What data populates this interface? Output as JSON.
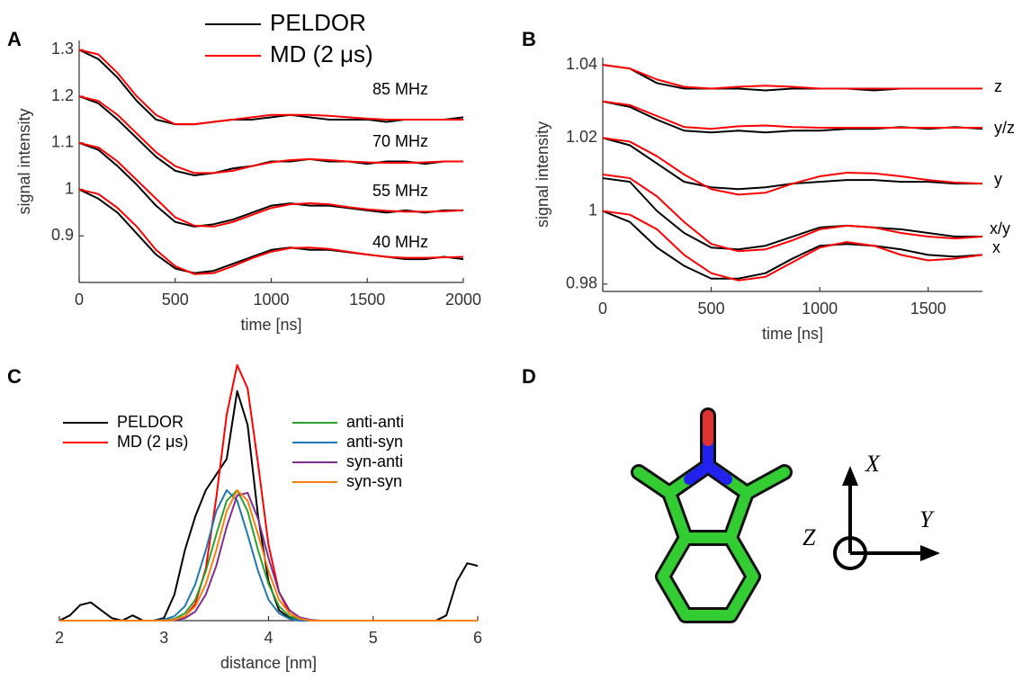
{
  "chart_data": [
    {
      "type": "line",
      "panel_label": "A",
      "xlabel": "time [ns]",
      "ylabel": "signal intensity",
      "xlim": [
        0,
        2000
      ],
      "ylim": [
        0.8,
        1.32
      ],
      "xticks": [
        0,
        500,
        1000,
        1500,
        2000
      ],
      "yticks": [
        0.9,
        1,
        1.1,
        1.2,
        1.3
      ],
      "legend": [
        {
          "name": "PELDOR",
          "color": "#000000"
        },
        {
          "name": "MD (2 μs)",
          "color": "#ff0000"
        }
      ],
      "x": [
        0,
        100,
        200,
        300,
        400,
        500,
        600,
        700,
        800,
        900,
        1000,
        1100,
        1200,
        1300,
        1400,
        1500,
        1600,
        1700,
        1800,
        1900,
        2000
      ],
      "traces": [
        {
          "label": "85 MHz",
          "peldor": [
            1.3,
            1.28,
            1.24,
            1.19,
            1.15,
            1.14,
            1.14,
            1.145,
            1.15,
            1.15,
            1.155,
            1.16,
            1.155,
            1.15,
            1.15,
            1.15,
            1.145,
            1.15,
            1.15,
            1.15,
            1.155
          ],
          "md": [
            1.3,
            1.29,
            1.25,
            1.2,
            1.16,
            1.14,
            1.14,
            1.145,
            1.15,
            1.155,
            1.16,
            1.16,
            1.16,
            1.158,
            1.155,
            1.152,
            1.15,
            1.15,
            1.15,
            1.15,
            1.15
          ]
        },
        {
          "label": "70 MHz",
          "peldor": [
            1.2,
            1.185,
            1.15,
            1.11,
            1.07,
            1.04,
            1.03,
            1.035,
            1.045,
            1.05,
            1.06,
            1.06,
            1.065,
            1.06,
            1.06,
            1.055,
            1.06,
            1.06,
            1.055,
            1.06,
            1.06
          ],
          "md": [
            1.2,
            1.19,
            1.16,
            1.12,
            1.08,
            1.05,
            1.035,
            1.035,
            1.04,
            1.05,
            1.058,
            1.063,
            1.065,
            1.063,
            1.06,
            1.058,
            1.057,
            1.057,
            1.058,
            1.06,
            1.06
          ]
        },
        {
          "label": "55 MHz",
          "peldor": [
            1.1,
            1.085,
            1.05,
            1.01,
            0.965,
            0.93,
            0.92,
            0.925,
            0.935,
            0.95,
            0.965,
            0.97,
            0.965,
            0.965,
            0.96,
            0.955,
            0.95,
            0.955,
            0.95,
            0.955,
            0.955
          ],
          "md": [
            1.1,
            1.09,
            1.06,
            1.02,
            0.98,
            0.94,
            0.922,
            0.92,
            0.93,
            0.945,
            0.96,
            0.968,
            0.97,
            0.968,
            0.962,
            0.957,
            0.954,
            0.952,
            0.952,
            0.953,
            0.955
          ]
        },
        {
          "label": "40 MHz",
          "peldor": [
            1.0,
            0.98,
            0.95,
            0.905,
            0.86,
            0.83,
            0.82,
            0.825,
            0.84,
            0.855,
            0.87,
            0.875,
            0.87,
            0.87,
            0.865,
            0.86,
            0.855,
            0.85,
            0.85,
            0.855,
            0.85
          ],
          "md": [
            1.0,
            0.99,
            0.96,
            0.92,
            0.87,
            0.835,
            0.818,
            0.82,
            0.835,
            0.852,
            0.866,
            0.874,
            0.875,
            0.872,
            0.866,
            0.86,
            0.855,
            0.853,
            0.853,
            0.854,
            0.855
          ]
        }
      ]
    },
    {
      "type": "line",
      "panel_label": "B",
      "xlabel": "time [ns]",
      "ylabel": "signal intensity",
      "xlim": [
        0,
        1750
      ],
      "ylim": [
        0.978,
        1.042
      ],
      "xticks": [
        0,
        500,
        1000,
        1500
      ],
      "yticks": [
        0.98,
        1,
        1.02,
        1.04
      ],
      "x": [
        0,
        125,
        250,
        375,
        500,
        625,
        750,
        875,
        1000,
        1125,
        1250,
        1375,
        1500,
        1625,
        1750
      ],
      "traces": [
        {
          "label": "z",
          "peldor": [
            1.04,
            1.039,
            1.035,
            1.0335,
            1.0335,
            1.0335,
            1.033,
            1.0335,
            1.0335,
            1.0335,
            1.033,
            1.0335,
            1.0335,
            1.0335,
            1.0335
          ],
          "md": [
            1.04,
            1.039,
            1.036,
            1.034,
            1.0335,
            1.034,
            1.0343,
            1.034,
            1.0335,
            1.0335,
            1.0335,
            1.0335,
            1.0335,
            1.0335,
            1.0335
          ]
        },
        {
          "label": "y/z",
          "peldor": [
            1.03,
            1.0285,
            1.025,
            1.022,
            1.0215,
            1.022,
            1.0215,
            1.022,
            1.022,
            1.0225,
            1.0225,
            1.023,
            1.0225,
            1.023,
            1.0225
          ],
          "md": [
            1.03,
            1.029,
            1.026,
            1.023,
            1.0225,
            1.0232,
            1.0234,
            1.023,
            1.0228,
            1.0228,
            1.0228,
            1.0228,
            1.0228,
            1.0228,
            1.0228
          ]
        },
        {
          "label": "y",
          "peldor": [
            1.02,
            1.018,
            1.013,
            1.008,
            1.0065,
            1.006,
            1.0065,
            1.0075,
            1.008,
            1.0085,
            1.0085,
            1.008,
            1.008,
            1.0075,
            1.0075
          ],
          "md": [
            1.02,
            1.019,
            1.015,
            1.01,
            1.006,
            1.0045,
            1.005,
            1.0075,
            1.0095,
            1.0105,
            1.0103,
            1.0095,
            1.0085,
            1.0078,
            1.0075
          ]
        },
        {
          "label": "x/y",
          "peldor": [
            1.009,
            1.008,
            1.0,
            0.994,
            0.99,
            0.9895,
            0.9905,
            0.993,
            0.9955,
            0.996,
            0.9955,
            0.995,
            0.994,
            0.993,
            0.993
          ],
          "md": [
            1.01,
            1.009,
            1.004,
            0.997,
            0.991,
            0.989,
            0.9895,
            0.992,
            0.995,
            0.996,
            0.9955,
            0.994,
            0.993,
            0.9925,
            0.993
          ]
        },
        {
          "label": "x",
          "peldor": [
            1.0,
            0.997,
            0.99,
            0.985,
            0.9815,
            0.9815,
            0.983,
            0.987,
            0.9905,
            0.991,
            0.9905,
            0.9895,
            0.988,
            0.9875,
            0.988
          ],
          "md": [
            1.0,
            0.999,
            0.995,
            0.988,
            0.983,
            0.981,
            0.982,
            0.986,
            0.99,
            0.9915,
            0.9905,
            0.988,
            0.9865,
            0.987,
            0.988
          ]
        }
      ]
    },
    {
      "type": "line",
      "panel_label": "C",
      "xlabel": "distance [nm]",
      "xlim": [
        2,
        6
      ],
      "ylim": [
        0,
        1
      ],
      "xticks": [
        2,
        3,
        4,
        5,
        6
      ],
      "x": [
        2,
        2.1,
        2.2,
        2.3,
        2.4,
        2.5,
        2.6,
        2.7,
        2.8,
        2.9,
        3,
        3.1,
        3.2,
        3.3,
        3.4,
        3.5,
        3.6,
        3.7,
        3.8,
        3.9,
        4,
        4.1,
        4.2,
        4.3,
        4.4,
        4.5,
        4.6,
        4.7,
        4.8,
        4.9,
        5,
        5.1,
        5.2,
        5.3,
        5.4,
        5.5,
        5.6,
        5.7,
        5.8,
        5.9,
        6
      ],
      "series": [
        {
          "name": "PELDOR",
          "color": "#000000",
          "values": [
            0,
            0.02,
            0.06,
            0.07,
            0.04,
            0.01,
            0,
            0.02,
            0,
            0,
            0.01,
            0.1,
            0.27,
            0.4,
            0.5,
            0.56,
            0.62,
            0.88,
            0.75,
            0.4,
            0.15,
            0.04,
            0.01,
            0,
            0,
            0,
            0,
            0,
            0,
            0,
            0,
            0,
            0,
            0,
            0,
            0,
            0,
            0.02,
            0.15,
            0.22,
            0.21
          ]
        },
        {
          "name": "MD (2 μs)",
          "color": "#ff0000",
          "values": [
            0,
            0,
            0,
            0,
            0,
            0,
            0,
            0,
            0,
            0,
            0,
            0.003,
            0.015,
            0.065,
            0.2,
            0.47,
            0.79,
            0.98,
            0.89,
            0.6,
            0.29,
            0.11,
            0.028,
            0.005,
            0,
            0,
            0,
            0,
            0,
            0,
            0,
            0,
            0,
            0,
            0,
            0,
            0,
            0,
            0,
            0,
            0
          ]
        },
        {
          "name": "anti-anti",
          "color": "#2ca02c",
          "values": [
            0,
            0,
            0,
            0,
            0,
            0,
            0,
            0,
            0,
            0,
            0.002,
            0.007,
            0.028,
            0.08,
            0.19,
            0.33,
            0.46,
            0.5,
            0.42,
            0.27,
            0.14,
            0.055,
            0.017,
            0.004,
            0,
            0,
            0,
            0,
            0,
            0,
            0,
            0,
            0,
            0,
            0,
            0,
            0,
            0,
            0,
            0,
            0
          ]
        },
        {
          "name": "anti-syn",
          "color": "#1f77b4",
          "values": [
            0,
            0,
            0,
            0,
            0,
            0,
            0,
            0,
            0,
            0,
            0.004,
            0.017,
            0.055,
            0.14,
            0.27,
            0.42,
            0.5,
            0.46,
            0.33,
            0.19,
            0.08,
            0.028,
            0.007,
            0,
            0,
            0,
            0,
            0,
            0,
            0,
            0,
            0,
            0,
            0,
            0,
            0,
            0,
            0,
            0,
            0,
            0
          ]
        },
        {
          "name": "syn-anti",
          "color": "#7e2f8e",
          "values": [
            0,
            0,
            0,
            0,
            0,
            0,
            0,
            0,
            0,
            0,
            0,
            0.002,
            0.009,
            0.035,
            0.1,
            0.21,
            0.36,
            0.48,
            0.49,
            0.39,
            0.24,
            0.11,
            0.04,
            0.012,
            0.003,
            0,
            0,
            0,
            0,
            0,
            0,
            0,
            0,
            0,
            0,
            0,
            0,
            0,
            0,
            0,
            0
          ]
        },
        {
          "name": "syn-syn",
          "color": "#ff7f0e",
          "values": [
            0,
            0,
            0,
            0,
            0,
            0,
            0,
            0,
            0,
            0,
            0,
            0.004,
            0.017,
            0.055,
            0.14,
            0.27,
            0.42,
            0.5,
            0.46,
            0.33,
            0.19,
            0.08,
            0.028,
            0.007,
            0,
            0,
            0,
            0,
            0,
            0,
            0,
            0,
            0,
            0,
            0,
            0,
            0,
            0,
            0,
            0,
            0
          ]
        }
      ]
    }
  ],
  "panel_d": {
    "label": "D",
    "axes": {
      "x": "X",
      "y": "Y",
      "z": "Z"
    }
  }
}
